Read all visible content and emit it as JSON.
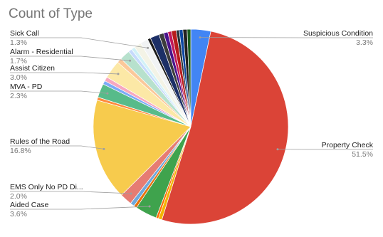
{
  "chart_data": {
    "type": "pie",
    "title": "Count of Type",
    "categories": [
      "Suspicious Condition",
      "Property Check",
      null,
      null,
      "Aided Case",
      null,
      null,
      "EMS Only No PD Di...",
      "Rules of the Road",
      null,
      "MVA - PD",
      null,
      null,
      "Assist Citizen",
      null,
      "Alarm - Residential",
      null,
      null,
      null,
      "Sick Call",
      null,
      null,
      null,
      null,
      null,
      null,
      null,
      null,
      null,
      null
    ],
    "values": [
      3.3,
      51.5,
      0.6,
      0.4,
      3.6,
      0.5,
      0.7,
      2.0,
      16.8,
      0.5,
      2.3,
      0.6,
      0.7,
      3.0,
      0.8,
      1.7,
      0.6,
      0.6,
      1.2,
      1.3,
      0.5,
      1.5,
      0.8,
      0.7,
      0.6,
      0.8,
      0.5,
      0.6,
      0.7,
      0.6
    ],
    "value_labels": [
      "3.3%",
      "51.5%",
      null,
      null,
      "3.6%",
      null,
      null,
      "2.0%",
      "16.8%",
      null,
      "2.3%",
      null,
      null,
      "3.0%",
      null,
      "1.7%",
      null,
      null,
      null,
      "1.3%",
      null,
      null,
      null,
      null,
      null,
      null,
      null,
      null,
      null,
      null
    ],
    "colors": [
      "#4285f4",
      "#db4437",
      "#f4b400",
      "#ff6d00",
      "#3fa34d",
      "#e8710a",
      "#6fa8dc",
      "#e67c73",
      "#f7cb4d",
      "#ff8a3d",
      "#57bb8a",
      "#7baaf7",
      "#f7a7c0",
      "#fce8a6",
      "#fbc89a",
      "#b7e1cd",
      "#c6dafc",
      "#d2f1f7",
      "#f3f3e6",
      "#f1f3f4",
      "#1a1a1a",
      "#1c2f66",
      "#3c3c3c",
      "#4a148c",
      "#c2185b",
      "#b71c1c",
      "#263238",
      "#0d47a1",
      "#212121",
      "#1b5e20"
    ]
  }
}
